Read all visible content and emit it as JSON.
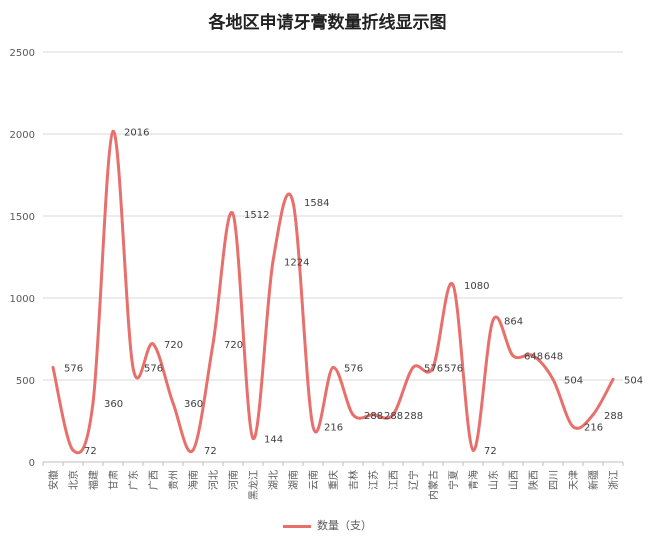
{
  "chart_data": {
    "type": "line",
    "title": "各地区申请牙膏数量折线显示图",
    "categories": [
      "安徽",
      "北京",
      "福建",
      "甘肃",
      "广东",
      "广西",
      "贵州",
      "海南",
      "河北",
      "河南",
      "黑龙江",
      "湖北",
      "湖南",
      "云南",
      "重庆",
      "吉林",
      "江苏",
      "江西",
      "辽宁",
      "内蒙古",
      "宁夏",
      "青海",
      "山东",
      "山西",
      "陕西",
      "四川",
      "天津",
      "新疆",
      "浙江"
    ],
    "series": [
      {
        "name": "数量（支）",
        "values": [
          576,
          72,
          360,
          2016,
          576,
          720,
          360,
          72,
          720,
          1512,
          144,
          1224,
          1584,
          216,
          576,
          288,
          288,
          288,
          576,
          576,
          1080,
          72,
          864,
          648,
          648,
          504,
          216,
          288,
          504
        ],
        "color": "#e8706c"
      }
    ],
    "y_ticks": [
      "0",
      "500",
      "1000",
      "1500",
      "2000",
      "2500"
    ],
    "ylim": [
      0,
      2500
    ],
    "grid": true,
    "legend": "bottom",
    "smooth": true
  }
}
